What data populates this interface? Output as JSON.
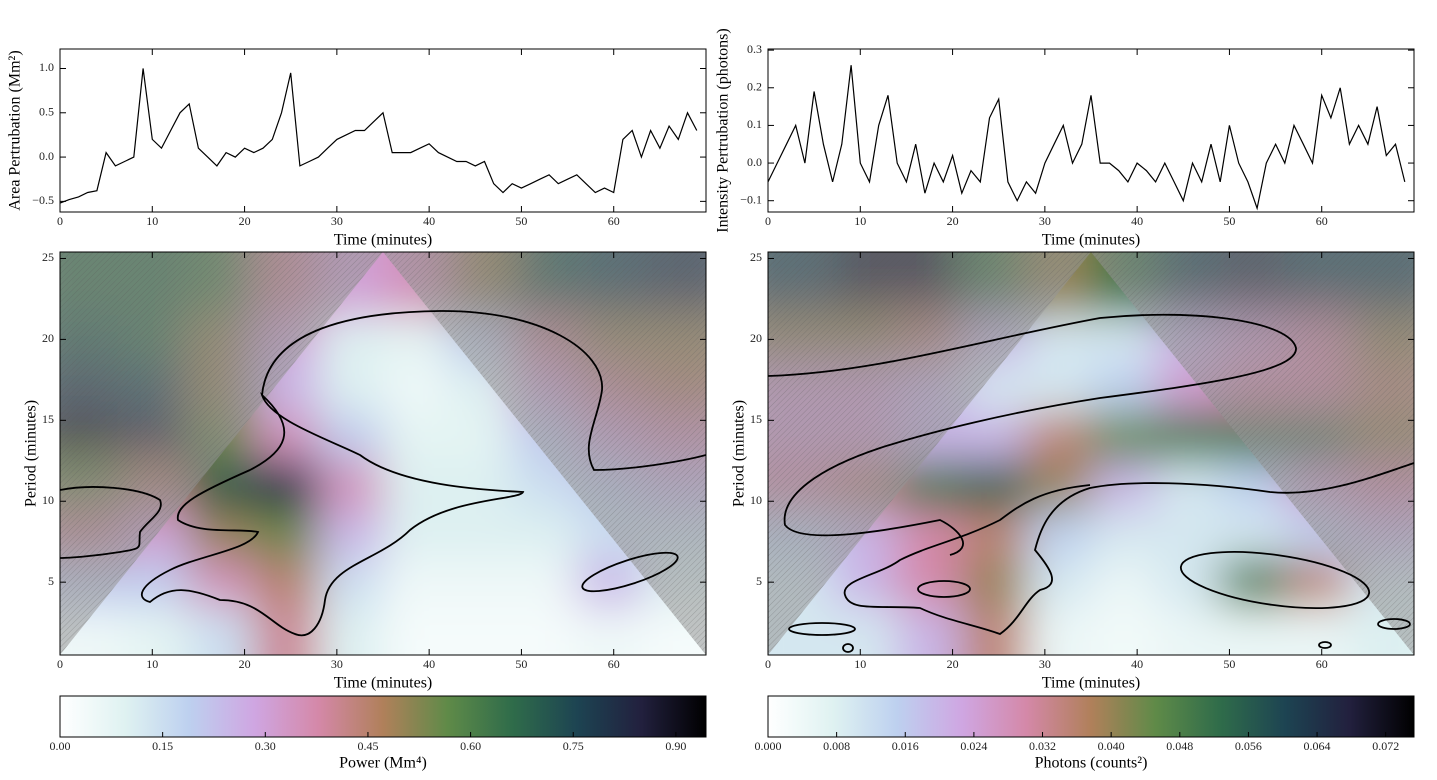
{
  "chart_data": [
    {
      "type": "line",
      "xlabel": "Time (minutes)",
      "ylabel": "Area Pertrubation (Mm²)",
      "color": "#000000",
      "x": [
        0,
        1,
        2,
        3,
        4,
        5,
        6,
        7,
        8,
        9,
        10,
        11,
        12,
        13,
        14,
        15,
        16,
        17,
        18,
        19,
        20,
        21,
        22,
        23,
        24,
        25,
        26,
        27,
        28,
        29,
        30,
        31,
        32,
        33,
        34,
        35,
        36,
        37,
        38,
        39,
        40,
        41,
        42,
        43,
        44,
        45,
        46,
        47,
        48,
        49,
        50,
        51,
        52,
        53,
        54,
        55,
        56,
        57,
        58,
        59,
        60,
        61,
        62,
        63,
        64,
        65,
        66,
        67,
        68,
        69
      ],
      "values": [
        -0.52,
        -0.48,
        -0.45,
        -0.4,
        -0.38,
        0.05,
        -0.1,
        -0.05,
        0.0,
        1.0,
        0.2,
        0.1,
        0.3,
        0.5,
        0.6,
        0.1,
        0.0,
        -0.1,
        0.05,
        0.0,
        0.1,
        0.05,
        0.1,
        0.2,
        0.5,
        0.95,
        -0.1,
        -0.05,
        0.0,
        0.1,
        0.2,
        0.25,
        0.3,
        0.3,
        0.4,
        0.5,
        0.05,
        0.05,
        0.05,
        0.1,
        0.15,
        0.05,
        0.0,
        -0.05,
        -0.05,
        -0.1,
        -0.05,
        -0.3,
        -0.4,
        -0.3,
        -0.35,
        -0.3,
        -0.25,
        -0.2,
        -0.3,
        -0.25,
        -0.2,
        -0.3,
        -0.4,
        -0.35,
        -0.4,
        0.2,
        0.3,
        0.0,
        0.3,
        0.1,
        0.35,
        0.2,
        0.5,
        0.3
      ],
      "xlim": [
        0,
        70
      ],
      "xticks": [
        0,
        10,
        20,
        30,
        40,
        50,
        60
      ],
      "ylim": [
        -0.62,
        1.22
      ],
      "yticks": [
        {
          "value": -0.5,
          "label": "−0.5"
        },
        {
          "value": 0,
          "label": "0.0"
        },
        {
          "value": 0.5,
          "label": "0.5"
        },
        {
          "value": 1,
          "label": "1.0"
        }
      ]
    },
    {
      "type": "line",
      "xlabel": "Time (minutes)",
      "ylabel": "Intensity Pertrubation (photons)",
      "color": "#000000",
      "x": [
        0,
        1,
        2,
        3,
        4,
        5,
        6,
        7,
        8,
        9,
        10,
        11,
        12,
        13,
        14,
        15,
        16,
        17,
        18,
        19,
        20,
        21,
        22,
        23,
        24,
        25,
        26,
        27,
        28,
        29,
        30,
        31,
        32,
        33,
        34,
        35,
        36,
        37,
        38,
        39,
        40,
        41,
        42,
        43,
        44,
        45,
        46,
        47,
        48,
        49,
        50,
        51,
        52,
        53,
        54,
        55,
        56,
        57,
        58,
        59,
        60,
        61,
        62,
        63,
        64,
        65,
        66,
        67,
        68,
        69
      ],
      "values": [
        -0.05,
        0.0,
        0.05,
        0.1,
        0.0,
        0.19,
        0.05,
        -0.05,
        0.05,
        0.26,
        0.0,
        -0.05,
        0.1,
        0.18,
        0.0,
        -0.05,
        0.05,
        -0.08,
        0.0,
        -0.05,
        0.02,
        -0.08,
        -0.02,
        -0.05,
        0.12,
        0.17,
        -0.05,
        -0.1,
        -0.05,
        -0.08,
        0.0,
        0.05,
        0.1,
        0.0,
        0.05,
        0.18,
        0.0,
        0.0,
        -0.02,
        -0.05,
        0.0,
        -0.02,
        -0.05,
        0.0,
        -0.05,
        -0.1,
        0.0,
        -0.05,
        0.05,
        -0.05,
        0.1,
        0.0,
        -0.05,
        -0.12,
        0.0,
        0.05,
        0.0,
        0.1,
        0.05,
        0.0,
        0.18,
        0.12,
        0.2,
        0.05,
        0.1,
        0.05,
        0.15,
        0.02,
        0.05,
        -0.05
      ],
      "xlim": [
        0,
        70
      ],
      "xticks": [
        0,
        10,
        20,
        30,
        40,
        50,
        60
      ],
      "ylim": [
        -0.13,
        0.303
      ],
      "yticks": [
        {
          "value": -0.1,
          "label": "−0.1"
        },
        {
          "value": 0,
          "label": "0.0"
        },
        {
          "value": 0.1,
          "label": "0.1"
        },
        {
          "value": 0.2,
          "label": "0.2"
        },
        {
          "value": 0.3,
          "label": "0.3"
        }
      ]
    },
    {
      "type": "heatmap",
      "xlabel": "Time (minutes)",
      "ylabel": "Period (minutes)",
      "x": [
        3.5,
        10.5,
        17.5,
        24.5,
        31.5,
        38.5,
        45.5,
        52.5,
        59.5,
        66.5
      ],
      "y": [
        2,
        5,
        8,
        11,
        14,
        17,
        20,
        23
      ],
      "z": [
        [
          0.05,
          0.08,
          0.15,
          0.4,
          0.1,
          0.03,
          0.03,
          0.03,
          0.05,
          0.03
        ],
        [
          0.2,
          0.2,
          0.35,
          0.45,
          0.15,
          0.05,
          0.05,
          0.05,
          0.25,
          0.1
        ],
        [
          0.4,
          0.3,
          0.5,
          0.55,
          0.25,
          0.1,
          0.1,
          0.1,
          0.15,
          0.15
        ],
        [
          0.55,
          0.45,
          0.7,
          0.8,
          0.35,
          0.1,
          0.1,
          0.15,
          0.2,
          0.25
        ],
        [
          0.95,
          0.85,
          0.55,
          0.35,
          0.2,
          0.08,
          0.08,
          0.2,
          0.3,
          0.35
        ],
        [
          0.8,
          0.75,
          0.5,
          0.25,
          0.1,
          0.05,
          0.1,
          0.3,
          0.4,
          0.45
        ],
        [
          0.7,
          0.65,
          0.5,
          0.3,
          0.1,
          0.08,
          0.2,
          0.4,
          0.5,
          0.5
        ],
        [
          0.65,
          0.65,
          0.6,
          0.4,
          0.3,
          0.35,
          0.5,
          0.7,
          0.75,
          0.8
        ]
      ],
      "xlim": [
        0,
        70
      ],
      "xticks": [
        0,
        10,
        20,
        30,
        40,
        50,
        60
      ],
      "ylim": [
        0.5,
        25.4
      ],
      "yticks": [
        5,
        10,
        15,
        20,
        25
      ],
      "colorbar": {
        "label": "Power (Mm⁴)",
        "lim": [
          0,
          0.944
        ],
        "ticks": [
          {
            "value": 0,
            "label": "0.00"
          },
          {
            "value": 0.15,
            "label": "0.15"
          },
          {
            "value": 0.3,
            "label": "0.30"
          },
          {
            "value": 0.45,
            "label": "0.45"
          },
          {
            "value": 0.6,
            "label": "0.60"
          },
          {
            "value": 0.75,
            "label": "0.75"
          },
          {
            "value": 0.9,
            "label": "0.90"
          }
        ]
      }
    },
    {
      "type": "heatmap",
      "xlabel": "Time (minutes)",
      "ylabel": "Period (minutes)",
      "x": [
        3.5,
        10.5,
        17.5,
        24.5,
        31.5,
        38.5,
        45.5,
        52.5,
        59.5,
        66.5
      ],
      "y": [
        2,
        5,
        8,
        11,
        14,
        17,
        20,
        23
      ],
      "z": [
        [
          0.01,
          0.01,
          0.02,
          0.035,
          0.005,
          0.003,
          0.005,
          0.005,
          0.005,
          0.008
        ],
        [
          0.01,
          0.02,
          0.03,
          0.04,
          0.01,
          0.005,
          0.01,
          0.05,
          0.035,
          0.01
        ],
        [
          0.015,
          0.02,
          0.03,
          0.035,
          0.015,
          0.01,
          0.01,
          0.01,
          0.015,
          0.02
        ],
        [
          0.03,
          0.035,
          0.05,
          0.055,
          0.04,
          0.02,
          0.01,
          0.015,
          0.025,
          0.03
        ],
        [
          0.025,
          0.025,
          0.02,
          0.02,
          0.035,
          0.045,
          0.05,
          0.05,
          0.05,
          0.04
        ],
        [
          0.025,
          0.025,
          0.02,
          0.01,
          0.01,
          0.015,
          0.025,
          0.03,
          0.03,
          0.035
        ],
        [
          0.04,
          0.04,
          0.035,
          0.02,
          0.01,
          0.01,
          0.02,
          0.025,
          0.03,
          0.04
        ],
        [
          0.06,
          0.07,
          0.07,
          0.05,
          0.04,
          0.05,
          0.06,
          0.065,
          0.06,
          0.06
        ]
      ],
      "xlim": [
        0,
        70
      ],
      "xticks": [
        0,
        10,
        20,
        30,
        40,
        50,
        60
      ],
      "ylim": [
        0.5,
        25.4
      ],
      "yticks": [
        5,
        10,
        15,
        20,
        25
      ],
      "colorbar": {
        "label": "Photons (counts²)",
        "lim": [
          0,
          0.0753
        ],
        "ticks": [
          {
            "value": 0,
            "label": "0.000"
          },
          {
            "value": 0.008,
            "label": "0.008"
          },
          {
            "value": 0.016,
            "label": "0.016"
          },
          {
            "value": 0.024,
            "label": "0.024"
          },
          {
            "value": 0.032,
            "label": "0.032"
          },
          {
            "value": 0.04,
            "label": "0.040"
          },
          {
            "value": 0.048,
            "label": "0.048"
          },
          {
            "value": 0.056,
            "label": "0.056"
          },
          {
            "value": 0.064,
            "label": "0.064"
          },
          {
            "value": 0.072,
            "label": "0.072"
          }
        ]
      }
    }
  ]
}
